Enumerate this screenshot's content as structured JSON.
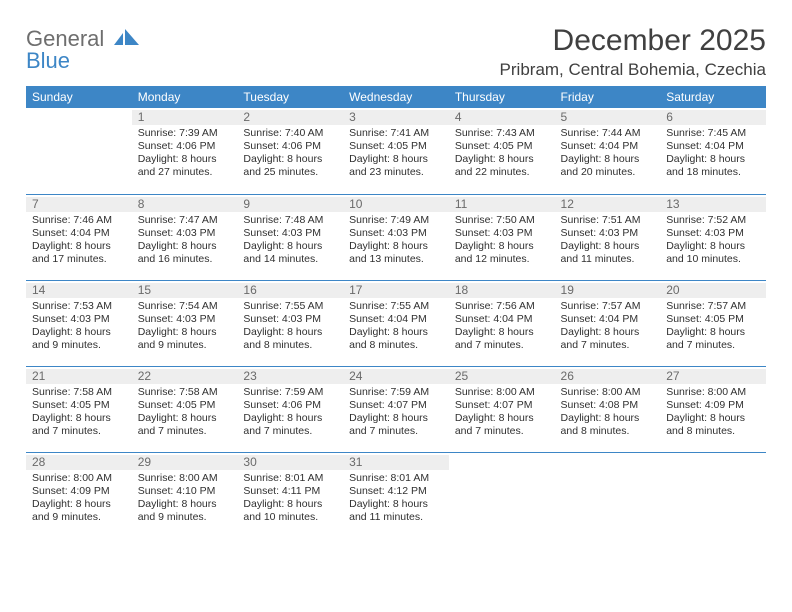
{
  "logo": {
    "line1": "General",
    "line2": "Blue"
  },
  "title": "December 2025",
  "location": "Pribram, Central Bohemia, Czechia",
  "colors": {
    "header_bg": "#3d86c6",
    "header_text": "#ffffff",
    "daynum_bg": "#eeeeee",
    "row_border": "#3d86c6",
    "body_text": "#303030",
    "logo_gray": "#6e6e6e",
    "logo_blue": "#3d86c6"
  },
  "fonts": {
    "title_size_pt": 22,
    "location_size_pt": 13,
    "header_size_pt": 9,
    "cell_size_pt": 8
  },
  "weekdays": [
    "Sunday",
    "Monday",
    "Tuesday",
    "Wednesday",
    "Thursday",
    "Friday",
    "Saturday"
  ],
  "weeks": [
    [
      null,
      {
        "n": "1",
        "sr": "Sunrise: 7:39 AM",
        "ss": "Sunset: 4:06 PM",
        "d1": "Daylight: 8 hours",
        "d2": "and 27 minutes."
      },
      {
        "n": "2",
        "sr": "Sunrise: 7:40 AM",
        "ss": "Sunset: 4:06 PM",
        "d1": "Daylight: 8 hours",
        "d2": "and 25 minutes."
      },
      {
        "n": "3",
        "sr": "Sunrise: 7:41 AM",
        "ss": "Sunset: 4:05 PM",
        "d1": "Daylight: 8 hours",
        "d2": "and 23 minutes."
      },
      {
        "n": "4",
        "sr": "Sunrise: 7:43 AM",
        "ss": "Sunset: 4:05 PM",
        "d1": "Daylight: 8 hours",
        "d2": "and 22 minutes."
      },
      {
        "n": "5",
        "sr": "Sunrise: 7:44 AM",
        "ss": "Sunset: 4:04 PM",
        "d1": "Daylight: 8 hours",
        "d2": "and 20 minutes."
      },
      {
        "n": "6",
        "sr": "Sunrise: 7:45 AM",
        "ss": "Sunset: 4:04 PM",
        "d1": "Daylight: 8 hours",
        "d2": "and 18 minutes."
      }
    ],
    [
      {
        "n": "7",
        "sr": "Sunrise: 7:46 AM",
        "ss": "Sunset: 4:04 PM",
        "d1": "Daylight: 8 hours",
        "d2": "and 17 minutes."
      },
      {
        "n": "8",
        "sr": "Sunrise: 7:47 AM",
        "ss": "Sunset: 4:03 PM",
        "d1": "Daylight: 8 hours",
        "d2": "and 16 minutes."
      },
      {
        "n": "9",
        "sr": "Sunrise: 7:48 AM",
        "ss": "Sunset: 4:03 PM",
        "d1": "Daylight: 8 hours",
        "d2": "and 14 minutes."
      },
      {
        "n": "10",
        "sr": "Sunrise: 7:49 AM",
        "ss": "Sunset: 4:03 PM",
        "d1": "Daylight: 8 hours",
        "d2": "and 13 minutes."
      },
      {
        "n": "11",
        "sr": "Sunrise: 7:50 AM",
        "ss": "Sunset: 4:03 PM",
        "d1": "Daylight: 8 hours",
        "d2": "and 12 minutes."
      },
      {
        "n": "12",
        "sr": "Sunrise: 7:51 AM",
        "ss": "Sunset: 4:03 PM",
        "d1": "Daylight: 8 hours",
        "d2": "and 11 minutes."
      },
      {
        "n": "13",
        "sr": "Sunrise: 7:52 AM",
        "ss": "Sunset: 4:03 PM",
        "d1": "Daylight: 8 hours",
        "d2": "and 10 minutes."
      }
    ],
    [
      {
        "n": "14",
        "sr": "Sunrise: 7:53 AM",
        "ss": "Sunset: 4:03 PM",
        "d1": "Daylight: 8 hours",
        "d2": "and 9 minutes."
      },
      {
        "n": "15",
        "sr": "Sunrise: 7:54 AM",
        "ss": "Sunset: 4:03 PM",
        "d1": "Daylight: 8 hours",
        "d2": "and 9 minutes."
      },
      {
        "n": "16",
        "sr": "Sunrise: 7:55 AM",
        "ss": "Sunset: 4:03 PM",
        "d1": "Daylight: 8 hours",
        "d2": "and 8 minutes."
      },
      {
        "n": "17",
        "sr": "Sunrise: 7:55 AM",
        "ss": "Sunset: 4:04 PM",
        "d1": "Daylight: 8 hours",
        "d2": "and 8 minutes."
      },
      {
        "n": "18",
        "sr": "Sunrise: 7:56 AM",
        "ss": "Sunset: 4:04 PM",
        "d1": "Daylight: 8 hours",
        "d2": "and 7 minutes."
      },
      {
        "n": "19",
        "sr": "Sunrise: 7:57 AM",
        "ss": "Sunset: 4:04 PM",
        "d1": "Daylight: 8 hours",
        "d2": "and 7 minutes."
      },
      {
        "n": "20",
        "sr": "Sunrise: 7:57 AM",
        "ss": "Sunset: 4:05 PM",
        "d1": "Daylight: 8 hours",
        "d2": "and 7 minutes."
      }
    ],
    [
      {
        "n": "21",
        "sr": "Sunrise: 7:58 AM",
        "ss": "Sunset: 4:05 PM",
        "d1": "Daylight: 8 hours",
        "d2": "and 7 minutes."
      },
      {
        "n": "22",
        "sr": "Sunrise: 7:58 AM",
        "ss": "Sunset: 4:05 PM",
        "d1": "Daylight: 8 hours",
        "d2": "and 7 minutes."
      },
      {
        "n": "23",
        "sr": "Sunrise: 7:59 AM",
        "ss": "Sunset: 4:06 PM",
        "d1": "Daylight: 8 hours",
        "d2": "and 7 minutes."
      },
      {
        "n": "24",
        "sr": "Sunrise: 7:59 AM",
        "ss": "Sunset: 4:07 PM",
        "d1": "Daylight: 8 hours",
        "d2": "and 7 minutes."
      },
      {
        "n": "25",
        "sr": "Sunrise: 8:00 AM",
        "ss": "Sunset: 4:07 PM",
        "d1": "Daylight: 8 hours",
        "d2": "and 7 minutes."
      },
      {
        "n": "26",
        "sr": "Sunrise: 8:00 AM",
        "ss": "Sunset: 4:08 PM",
        "d1": "Daylight: 8 hours",
        "d2": "and 8 minutes."
      },
      {
        "n": "27",
        "sr": "Sunrise: 8:00 AM",
        "ss": "Sunset: 4:09 PM",
        "d1": "Daylight: 8 hours",
        "d2": "and 8 minutes."
      }
    ],
    [
      {
        "n": "28",
        "sr": "Sunrise: 8:00 AM",
        "ss": "Sunset: 4:09 PM",
        "d1": "Daylight: 8 hours",
        "d2": "and 9 minutes."
      },
      {
        "n": "29",
        "sr": "Sunrise: 8:00 AM",
        "ss": "Sunset: 4:10 PM",
        "d1": "Daylight: 8 hours",
        "d2": "and 9 minutes."
      },
      {
        "n": "30",
        "sr": "Sunrise: 8:01 AM",
        "ss": "Sunset: 4:11 PM",
        "d1": "Daylight: 8 hours",
        "d2": "and 10 minutes."
      },
      {
        "n": "31",
        "sr": "Sunrise: 8:01 AM",
        "ss": "Sunset: 4:12 PM",
        "d1": "Daylight: 8 hours",
        "d2": "and 11 minutes."
      },
      null,
      null,
      null
    ]
  ]
}
